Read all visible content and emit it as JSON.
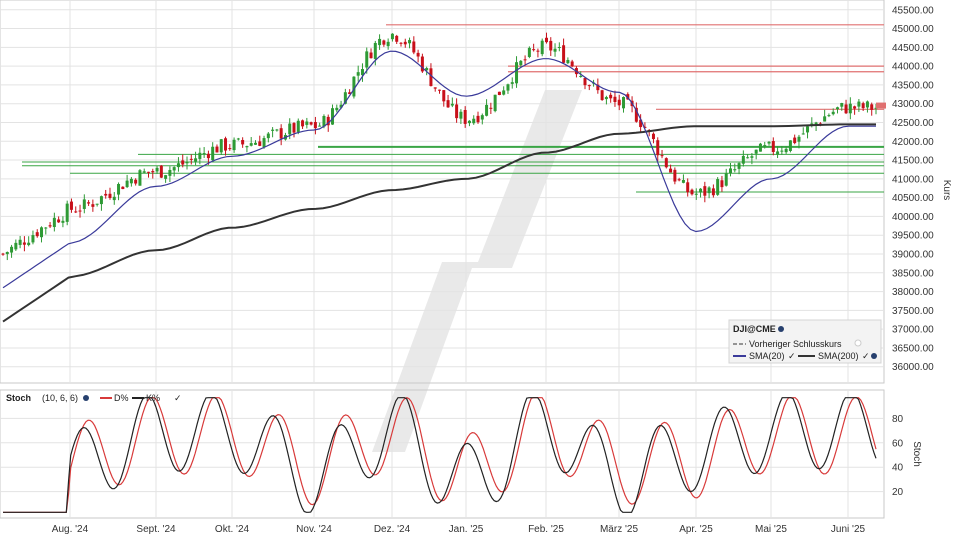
{
  "colors": {
    "up": "#2e9a35",
    "down": "#c8101a",
    "sma20": "#3a3a9a",
    "sma200": "#333333",
    "resistance": "#e07070",
    "support": "#3aa545",
    "stoch_d": "#d83a3a",
    "stoch_k": "#222222",
    "grid": "#e3e3e3",
    "watermark": "#e4e4e4"
  },
  "main": {
    "ylabel": "Kurs",
    "y_ticks": [
      "45500.00",
      "45000.00",
      "44500.00",
      "44000.00",
      "43500.00",
      "43000.00",
      "42500.00",
      "42000.00",
      "41500.00",
      "41000.00",
      "40500.00",
      "40000.00",
      "39500.00",
      "39000.00",
      "38500.00",
      "38000.00",
      "37500.00",
      "37000.00",
      "36500.00",
      "36000.00"
    ],
    "legend": {
      "symbol": "DJI@CME",
      "prev_close": "Vorheriger Schlusskurs",
      "sma20": "SMA(20)",
      "sma200": "SMA(200)"
    }
  },
  "stoch": {
    "title": "Stoch",
    "params": "(10, 6, 6)",
    "d_label": "D%",
    "k_label": "K%",
    "ylabel": "Stoch",
    "y_ticks": [
      "80",
      "60",
      "40",
      "20"
    ]
  },
  "x_labels": [
    "Aug. '24",
    "Sept. '24",
    "Okt. '24",
    "Nov. '24",
    "Dez. '24",
    "Jan. '25",
    "Feb. '25",
    "März '25",
    "Apr. '25",
    "Mai '25",
    "Juni '25"
  ],
  "chart_data": [
    {
      "type": "candlestick",
      "ylabel": "Kurs",
      "ylim": [
        35700,
        45600
      ],
      "x": [
        "Aug. '24",
        "Sept. '24",
        "Okt. '24",
        "Nov. '24",
        "Dez. '24",
        "Jan. '25",
        "Feb. '25",
        "März '25",
        "Apr. '25",
        "Mai '25",
        "Juni '25"
      ],
      "close": [
        40200,
        41200,
        41900,
        42400,
        44850,
        42600,
        44500,
        43000,
        40600,
        41800,
        42900
      ],
      "series": [
        {
          "name": "SMA(20)",
          "values": [
            39300,
            40800,
            41600,
            42300,
            44400,
            43200,
            44200,
            43300,
            39600,
            41000,
            42400
          ]
        },
        {
          "name": "SMA(200)",
          "values": [
            38400,
            39100,
            39700,
            40200,
            40700,
            41000,
            41700,
            42200,
            42400,
            42400,
            42450
          ]
        }
      ],
      "horizontal_levels": {
        "resistance": [
          45100,
          44000,
          43850,
          42850
        ],
        "support": [
          41850,
          41650,
          41450,
          41350,
          41150,
          40650
        ]
      },
      "last_close": 42950
    },
    {
      "type": "line",
      "ylabel": "Stoch",
      "ylim": [
        0,
        100
      ],
      "x": [
        "Aug. '24",
        "Sept. '24",
        "Okt. '24",
        "Nov. '24",
        "Dez. '24",
        "Jan. '25",
        "Feb. '25",
        "März '25",
        "Apr. '25",
        "Mai '25",
        "Juni '25"
      ],
      "series": [
        {
          "name": "K%",
          "values": [
            30,
            85,
            85,
            20,
            88,
            10,
            95,
            15,
            55,
            85,
            90
          ]
        },
        {
          "name": "D%",
          "values": [
            40,
            80,
            82,
            35,
            85,
            25,
            90,
            35,
            45,
            83,
            80
          ]
        }
      ]
    }
  ]
}
